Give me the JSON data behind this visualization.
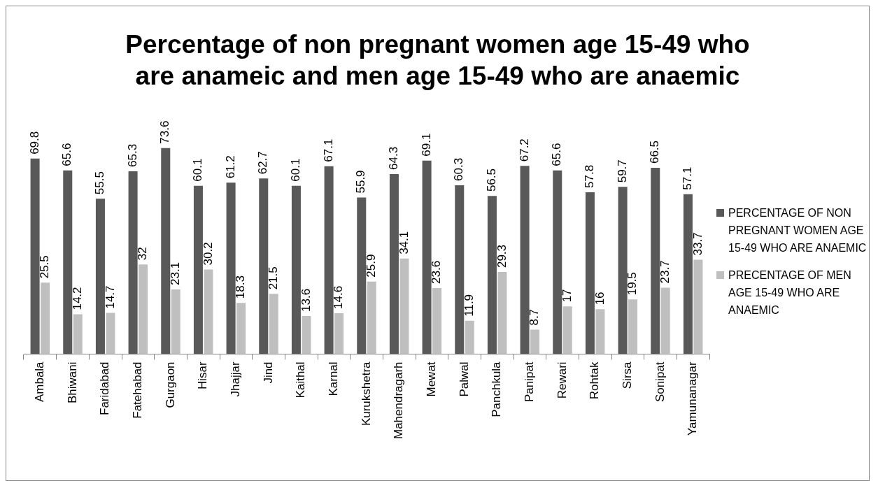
{
  "chart_data": {
    "type": "bar",
    "title": "Percentage of non pregnant women age 15-49 who are anameic and men age 15-49 who are anaemic",
    "categories": [
      "Ambala",
      "Bhiwani",
      "Faridabad",
      "Fatehabad",
      "Gurgaon",
      "Hisar",
      "Jhajjar",
      "Jind",
      "Kaithal",
      "Karnal",
      "Kurukshetra",
      "Mahendragarh",
      "Mewat",
      "Palwal",
      "Panchkula",
      "Panipat",
      "Rewari",
      "Rohtak",
      "Sirsa",
      "Sonipat",
      "Yamunanagar"
    ],
    "series": [
      {
        "name": "PERCENTAGE OF NON PREGNANT WOMEN AGE 15-49 WHO ARE ANAEMIC",
        "color": "#595959",
        "values": [
          69.8,
          65.6,
          55.5,
          65.3,
          73.6,
          60.1,
          61.2,
          62.7,
          60.1,
          67.1,
          55.9,
          64.3,
          69.1,
          60.3,
          56.5,
          67.2,
          65.6,
          57.8,
          59.7,
          66.5,
          57.1
        ]
      },
      {
        "name": "PRECENTAGE OF MEN AGE 15-49 WHO ARE ANAEMIC",
        "color": "#bfbfbf",
        "values": [
          25.5,
          14.2,
          14.7,
          32,
          23.1,
          30.2,
          18.3,
          21.5,
          13.6,
          14.6,
          25.9,
          34.1,
          23.6,
          11.9,
          29.3,
          8.7,
          17,
          16,
          19.5,
          23.7,
          33.7
        ]
      }
    ],
    "data_labels": true,
    "grid": false,
    "legend": "right",
    "tick_labels": "x"
  }
}
